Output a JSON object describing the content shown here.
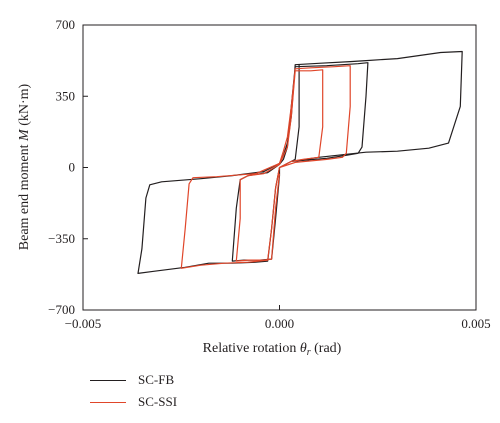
{
  "chart_data": {
    "type": "line",
    "title": "",
    "xlabel": "Relative rotation",
    "xlabel_symbol": "θ",
    "xlabel_sub": "r",
    "xlabel_unit": "(rad)",
    "ylabel": "Beam end moment",
    "ylabel_symbol": "M",
    "ylabel_unit": "(kN·m)",
    "xlim": [
      -0.005,
      0.005
    ],
    "ylim": [
      -700,
      700
    ],
    "xticks": [
      -0.005,
      0.0,
      0.005
    ],
    "xtick_labels": [
      "−0.005",
      "0.000",
      "0.005"
    ],
    "yticks": [
      700,
      350,
      0,
      -350,
      -700
    ],
    "ytick_labels": [
      "700",
      "350",
      "0",
      "−350",
      "−700"
    ],
    "grid": false,
    "legend_position": "below-left",
    "series": [
      {
        "name": "SC-FB",
        "color": "#231f20",
        "points": [
          [
            0,
            0
          ],
          [
            0.0003,
            30
          ],
          [
            0.001,
            50
          ],
          [
            0.0017,
            65
          ],
          [
            0.0022,
            75
          ],
          [
            0.003,
            80
          ],
          [
            0.0038,
            95
          ],
          [
            0.0043,
            120
          ],
          [
            0.0046,
            300
          ],
          [
            0.00465,
            570
          ],
          [
            0.0041,
            565
          ],
          [
            0.003,
            535
          ],
          [
            0.0022,
            525
          ],
          [
            0.0018,
            520
          ],
          [
            0.001,
            512
          ],
          [
            0.0004,
            505
          ],
          [
            0.0003,
            250
          ],
          [
            0.0002,
            120
          ],
          [
            0.0001,
            60
          ],
          [
            0,
            20
          ],
          [
            -0.0004,
            -20
          ],
          [
            -0.0012,
            -40
          ],
          [
            -0.002,
            -55
          ],
          [
            -0.003,
            -70
          ],
          [
            -0.0033,
            -85
          ],
          [
            -0.0034,
            -150
          ],
          [
            -0.0035,
            -400
          ],
          [
            -0.0036,
            -520
          ],
          [
            -0.0032,
            -510
          ],
          [
            -0.0024,
            -490
          ],
          [
            -0.0018,
            -470
          ],
          [
            -0.0012,
            -470
          ],
          [
            -0.0006,
            -465
          ],
          [
            -0.0003,
            -460
          ],
          [
            -0.0002,
            -300
          ],
          [
            -0.0001,
            -100
          ],
          [
            0,
            0
          ],
          [
            0.0003,
            30
          ],
          [
            0.0012,
            45
          ],
          [
            0.0017,
            60
          ],
          [
            0.002,
            70
          ],
          [
            0.0021,
            100
          ],
          [
            0.0022,
            350
          ],
          [
            0.00225,
            515
          ],
          [
            0.002,
            510
          ],
          [
            0.0012,
            500
          ],
          [
            0.0004,
            495
          ],
          [
            0.0003,
            300
          ],
          [
            0.0002,
            100
          ],
          [
            0.0001,
            40
          ],
          [
            0,
            15
          ],
          [
            -0.0003,
            -25
          ],
          [
            -0.0008,
            -40
          ],
          [
            -0.001,
            -60
          ],
          [
            -0.0011,
            -200
          ],
          [
            -0.0012,
            -460
          ],
          [
            -0.0009,
            -455
          ],
          [
            -0.0005,
            -455
          ],
          [
            -0.0002,
            -450
          ],
          [
            -0.0001,
            -250
          ],
          [
            0,
            -40
          ],
          [
            0,
            0
          ],
          [
            0.0002,
            20
          ],
          [
            0.0004,
            40
          ],
          [
            0.0005,
            200
          ],
          [
            0.0005,
            505
          ]
        ]
      },
      {
        "name": "SC-SSI",
        "color": "#e0462a",
        "points": [
          [
            0,
            0
          ],
          [
            0.0004,
            25
          ],
          [
            0.0012,
            40
          ],
          [
            0.0016,
            50
          ],
          [
            0.0017,
            70
          ],
          [
            0.0018,
            300
          ],
          [
            0.0018,
            500
          ],
          [
            0.0014,
            495
          ],
          [
            0.0008,
            490
          ],
          [
            0.0004,
            485
          ],
          [
            0.0003,
            300
          ],
          [
            0.0002,
            150
          ],
          [
            0.0001,
            80
          ],
          [
            0,
            20
          ],
          [
            -0.0006,
            -30
          ],
          [
            -0.0016,
            -45
          ],
          [
            -0.0022,
            -50
          ],
          [
            -0.0023,
            -80
          ],
          [
            -0.0024,
            -300
          ],
          [
            -0.0025,
            -495
          ],
          [
            -0.002,
            -480
          ],
          [
            -0.0014,
            -470
          ],
          [
            -0.0008,
            -465
          ],
          [
            -0.0003,
            -455
          ],
          [
            -0.0002,
            -300
          ],
          [
            -0.0001,
            -100
          ],
          [
            0,
            0
          ],
          [
            0.0003,
            30
          ],
          [
            0.0006,
            40
          ],
          [
            0.0008,
            45
          ],
          [
            0.001,
            50
          ],
          [
            0.0011,
            200
          ],
          [
            0.0011,
            480
          ],
          [
            0.0008,
            475
          ],
          [
            0.0004,
            475
          ],
          [
            0.0003,
            250
          ],
          [
            0.0002,
            100
          ],
          [
            0,
            15
          ],
          [
            -0.0004,
            -30
          ],
          [
            -0.0008,
            -40
          ],
          [
            -0.001,
            -60
          ],
          [
            -0.001,
            -250
          ],
          [
            -0.0011,
            -460
          ],
          [
            -0.0008,
            -455
          ],
          [
            -0.0004,
            -455
          ],
          [
            -0.0002,
            -450
          ],
          [
            -0.0001,
            -200
          ],
          [
            0,
            -30
          ]
        ]
      }
    ]
  }
}
